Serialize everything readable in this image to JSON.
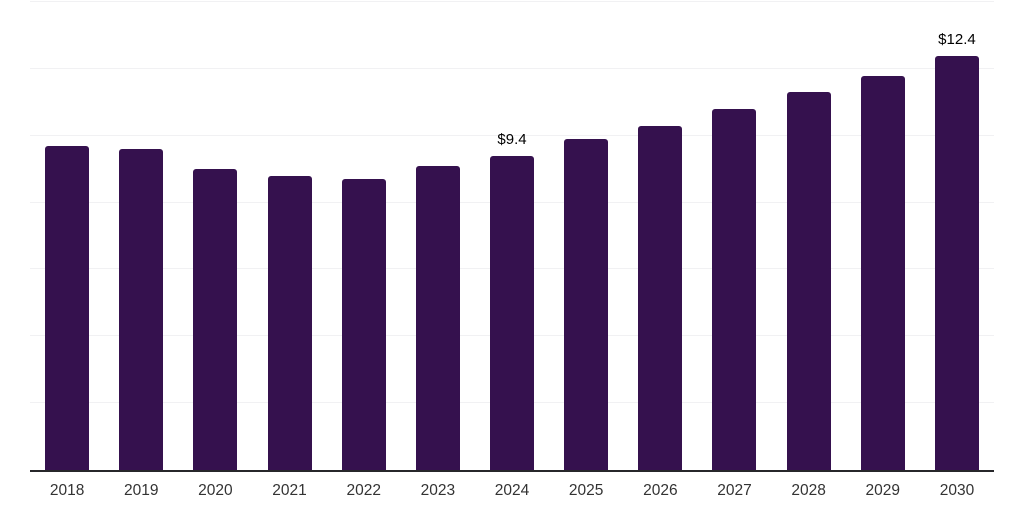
{
  "chart": {
    "bar_color": "#35114E",
    "gridline_color": "#f1f1f3",
    "axis_color": "#27272a",
    "tick_color": "#333333",
    "data_label_color": "#000000"
  },
  "chart_data": {
    "type": "bar",
    "categories": [
      "2018",
      "2019",
      "2020",
      "2021",
      "2022",
      "2023",
      "2024",
      "2025",
      "2026",
      "2027",
      "2028",
      "2029",
      "2030"
    ],
    "values": [
      9.7,
      9.6,
      9.0,
      8.8,
      8.7,
      9.1,
      9.4,
      9.9,
      10.3,
      10.8,
      11.3,
      11.8,
      12.4
    ],
    "point_labels": [
      "",
      "",
      "",
      "",
      "",
      "",
      "$9.4",
      "",
      "",
      "",
      "",
      "",
      "$12.4"
    ],
    "title": "",
    "xlabel": "",
    "ylabel": "",
    "ylim": [
      0,
      14
    ],
    "grid": true,
    "gridline_step": 2,
    "legend_position": "none"
  }
}
